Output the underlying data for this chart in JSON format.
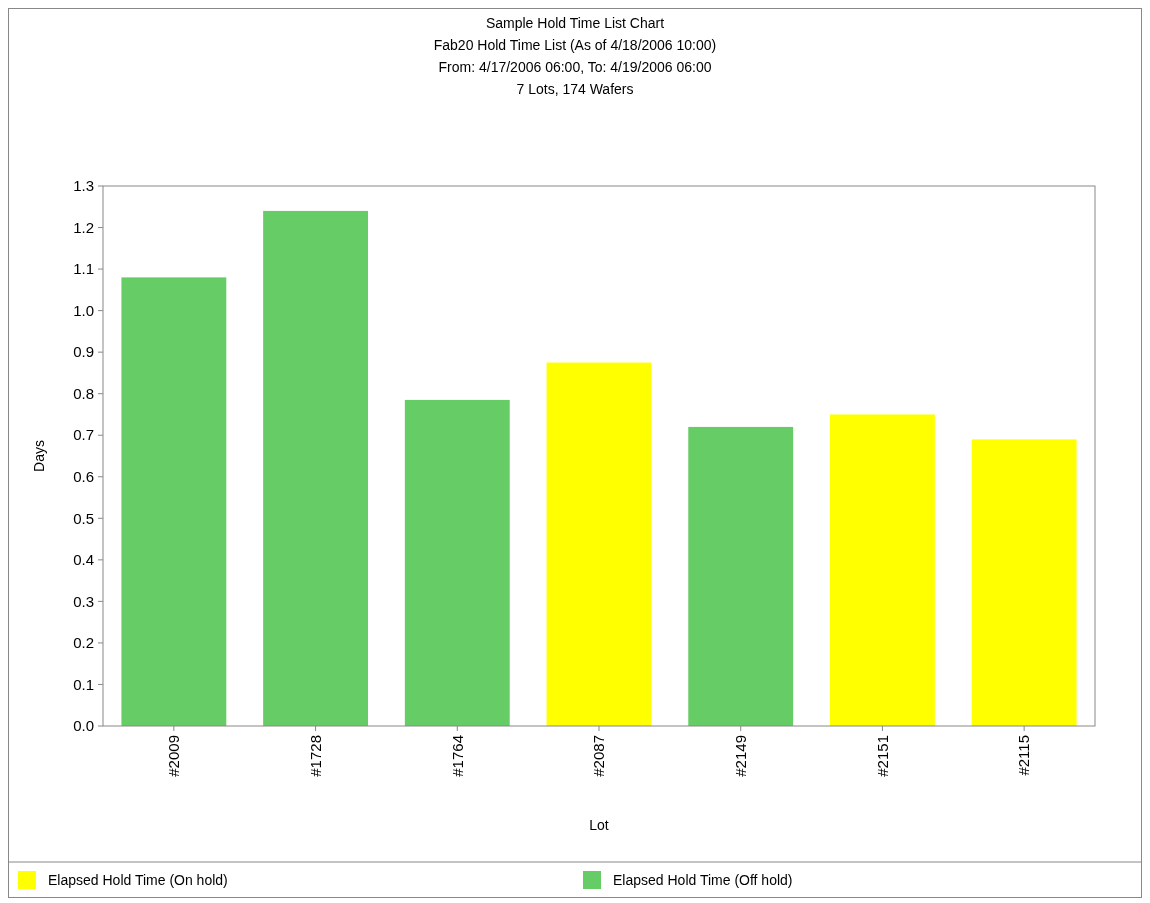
{
  "chart_data": {
    "type": "bar",
    "title": "Sample Hold Time List Chart",
    "subtitle": "Fab20 Hold Time List  (As of 4/18/2006 10:00)\nFrom: 4/17/2006 06:00, To: 4/19/2006 06:00\n7 Lots, 174 Wafers",
    "xlabel": "Lot",
    "ylabel": "Days",
    "categories": [
      "#2009",
      "#1728",
      "#1764",
      "#2087",
      "#2149",
      "#2151",
      "#2115"
    ],
    "stacked": true,
    "series": [
      {
        "name": "Elapsed Hold Time (On hold)",
        "color": "#ffff00",
        "values": [
          null,
          null,
          null,
          0.875,
          null,
          0.75,
          0.69
        ]
      },
      {
        "name": "Elapsed Hold Time (Off hold)",
        "color": "#66cc66",
        "values": [
          1.08,
          1.24,
          0.785,
          null,
          0.72,
          null,
          null
        ]
      }
    ],
    "ylim": [
      0,
      1.3
    ],
    "yticks": [
      {
        "value": 0,
        "label": "0.0"
      },
      {
        "value": 0.1,
        "label": "0.1"
      },
      {
        "value": 0.2,
        "label": "0.2"
      },
      {
        "value": 0.3,
        "label": "0.3"
      },
      {
        "value": 0.4,
        "label": "0.4"
      },
      {
        "value": 0.5,
        "label": "0.5"
      },
      {
        "value": 0.6,
        "label": "0.6"
      },
      {
        "value": 0.7,
        "label": "0.7"
      },
      {
        "value": 0.8,
        "label": "0.8"
      },
      {
        "value": 0.9,
        "label": "0.9"
      },
      {
        "value": 1,
        "label": "1.0"
      },
      {
        "value": 1.1,
        "label": "1.1"
      },
      {
        "value": 1.2,
        "label": "1.2"
      },
      {
        "value": 1.3,
        "label": "1.3"
      }
    ],
    "grid": false,
    "legend": "bottom"
  }
}
